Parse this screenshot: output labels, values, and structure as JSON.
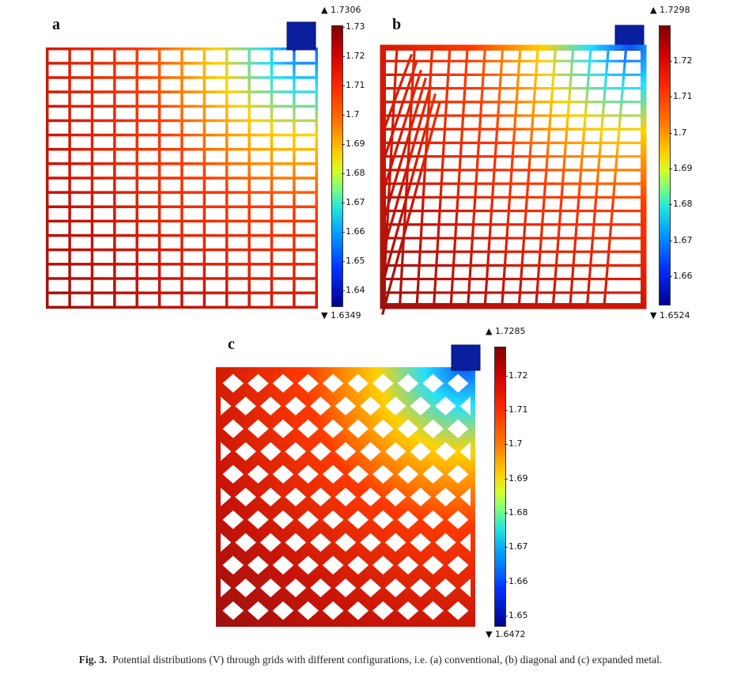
{
  "figure": {
    "caption_label": "Fig. 3.",
    "caption_text": "Potential distributions (V) through grids with different configurations, i.e. (a) conventional, (b) diagonal and (c) expanded metal."
  },
  "panels": [
    {
      "id": "a",
      "letter": "a",
      "configuration": "conventional",
      "colorbar": {
        "max_label": "▲ 1.7306",
        "min_label": "▼ 1.6349",
        "max": 1.7306,
        "min": 1.6349,
        "ticks": [
          "1.73",
          "1.72",
          "1.71",
          "1.7",
          "1.69",
          "1.68",
          "1.67",
          "1.66",
          "1.65",
          "1.64"
        ]
      }
    },
    {
      "id": "b",
      "letter": "b",
      "configuration": "diagonal",
      "colorbar": {
        "max_label": "▲ 1.7298",
        "min_label": "▼ 1.6524",
        "max": 1.7298,
        "min": 1.6524,
        "ticks": [
          "1.72",
          "1.71",
          "1.7",
          "1.69",
          "1.68",
          "1.67",
          "1.66"
        ]
      }
    },
    {
      "id": "c",
      "letter": "c",
      "configuration": "expanded metal",
      "colorbar": {
        "max_label": "▲ 1.7285",
        "min_label": "▼ 1.6472",
        "max": 1.7285,
        "min": 1.6472,
        "ticks": [
          "1.72",
          "1.71",
          "1.7",
          "1.69",
          "1.68",
          "1.67",
          "1.66",
          "1.65"
        ]
      }
    }
  ],
  "colors": {
    "tab": "#0a1f9e",
    "frame": "#8b1010",
    "hot": "#ff3a00",
    "warm": "#ffd200",
    "cool": "#22e0ff",
    "cold": "#0a50ff"
  }
}
